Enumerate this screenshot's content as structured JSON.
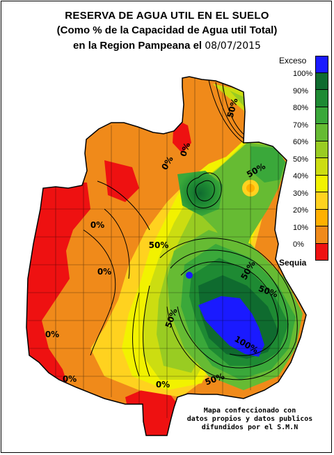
{
  "title": {
    "line1": "RESERVA DE AGUA UTIL EN EL SUELO",
    "line2": "(Como % de la Capacidad de  Agua util Total)",
    "line3_prefix": "en la Region Pampeana el",
    "date": "08/07/2015"
  },
  "legend": {
    "top_label": "Exceso",
    "bottom_label": "Sequia",
    "classes": [
      {
        "label": "100%",
        "color": "#1a1aff"
      },
      {
        "label": "90%",
        "color": "#0f6b2f"
      },
      {
        "label": "80%",
        "color": "#1e8a33"
      },
      {
        "label": "70%",
        "color": "#3aa83a"
      },
      {
        "label": "60%",
        "color": "#66bb33"
      },
      {
        "label": "50%",
        "color": "#99cc22"
      },
      {
        "label": "40%",
        "color": "#ccdd11"
      },
      {
        "label": "30%",
        "color": "#f2f200"
      },
      {
        "label": "20%",
        "color": "#ffd21f"
      },
      {
        "label": "10%",
        "color": "#ffb000"
      },
      {
        "label": "0%",
        "color": "#f08a1a"
      },
      {
        "label": "",
        "color": "#ee1111"
      }
    ]
  },
  "contour_labels": [
    "0%",
    "0%",
    "0%",
    "0%",
    "0%",
    "0%",
    "0%",
    "50%",
    "50%",
    "50%",
    "50%",
    "50%",
    "50%",
    "50%",
    "100%"
  ],
  "credit": {
    "line1": "Mapa confeccionado con",
    "line2": "datos propios y datos publicos",
    "line3": "difundidos por el S.M.N"
  }
}
